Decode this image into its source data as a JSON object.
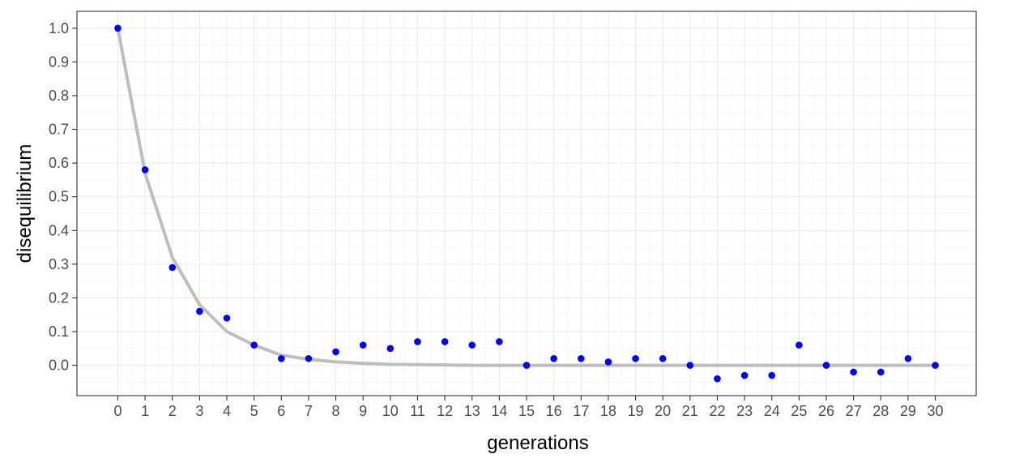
{
  "chart_data": {
    "type": "scatter",
    "title": "",
    "xlabel": "generations",
    "ylabel": "disequilibrium",
    "xlim": [
      -1.5,
      31.5
    ],
    "ylim": [
      -0.09,
      1.05
    ],
    "x_ticks": [
      0,
      1,
      2,
      3,
      4,
      5,
      6,
      7,
      8,
      9,
      10,
      11,
      12,
      13,
      14,
      15,
      16,
      17,
      18,
      19,
      20,
      21,
      22,
      23,
      24,
      25,
      26,
      27,
      28,
      29,
      30
    ],
    "y_ticks": [
      0.0,
      0.1,
      0.2,
      0.3,
      0.4,
      0.5,
      0.6,
      0.7,
      0.8,
      0.9,
      1.0
    ],
    "y_tick_labels": [
      "0.0",
      "0.1",
      "0.2",
      "0.3",
      "0.4",
      "0.5",
      "0.6",
      "0.7",
      "0.8",
      "0.9",
      "1.0"
    ],
    "grid": true,
    "legend": "none",
    "series": [
      {
        "kind": "points",
        "color": "#0000ff",
        "x": [
          0,
          1,
          2,
          3,
          4,
          5,
          6,
          7,
          8,
          9,
          10,
          11,
          12,
          13,
          14,
          15,
          16,
          17,
          18,
          19,
          20,
          21,
          22,
          23,
          24,
          25,
          26,
          27,
          28,
          29,
          30
        ],
        "y": [
          1.0,
          0.58,
          0.29,
          0.16,
          0.14,
          0.06,
          0.02,
          0.02,
          0.04,
          0.06,
          0.05,
          0.07,
          0.07,
          0.06,
          0.07,
          0.0,
          0.02,
          0.02,
          0.01,
          0.02,
          0.02,
          0.0,
          -0.04,
          -0.03,
          -0.03,
          0.06,
          0.0,
          -0.02,
          -0.02,
          0.02,
          0.0
        ]
      },
      {
        "kind": "line",
        "color": "#bebebe",
        "x": [
          0,
          1,
          2,
          3,
          4,
          5,
          6,
          7,
          8,
          9,
          10,
          11,
          12,
          13,
          14,
          15,
          16,
          17,
          18,
          19,
          20,
          21,
          22,
          23,
          24,
          25,
          26,
          27,
          28,
          29,
          30
        ],
        "y": [
          1.0,
          0.57,
          0.32,
          0.18,
          0.1,
          0.06,
          0.03,
          0.018,
          0.01,
          0.006,
          0.003,
          0.002,
          0.001,
          0.0,
          0.0,
          0.0,
          0.0,
          0.0,
          0.0,
          0.0,
          0.0,
          0.0,
          0.0,
          0.0,
          0.0,
          0.0,
          0.0,
          0.0,
          0.0,
          0.0,
          0.0
        ]
      }
    ]
  }
}
